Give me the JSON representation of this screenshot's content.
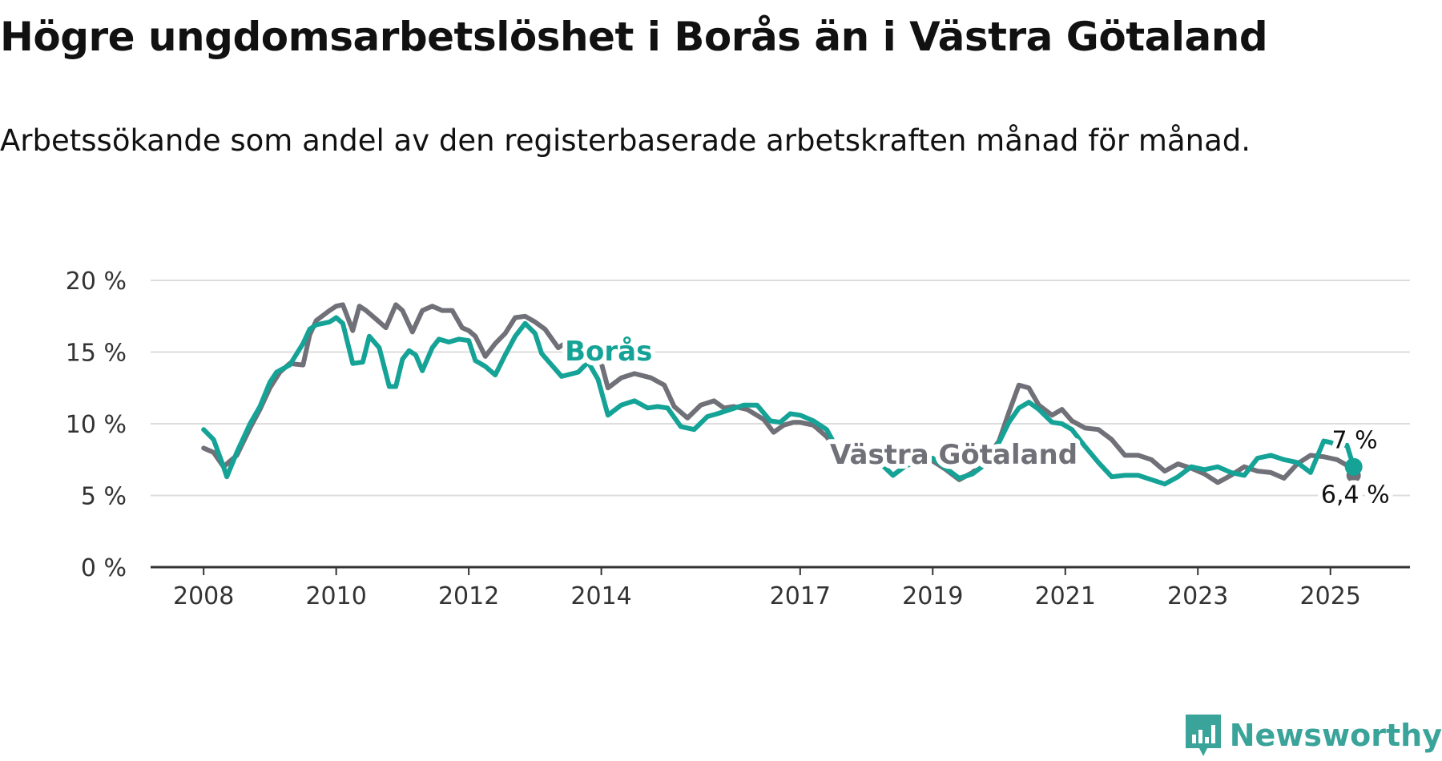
{
  "title": "Högre ungdomsarbetslöshet i Borås än i Västra Götaland",
  "subtitle": "Arbetssökande som andel av den registerbaserade arbetskraften månad för månad.",
  "brand": {
    "name": "Newsworthy",
    "icon": "bar-chart-speech-bubble-icon"
  },
  "colors": {
    "boras": "#14a396",
    "vastra": "#707078",
    "grid": "#dddddd",
    "axis": "#333333",
    "brand": "#3aa39a"
  },
  "chart_data": {
    "type": "line",
    "x_tick_labels": [
      "2008",
      "2010",
      "2012",
      "2014",
      "2017",
      "2019",
      "2021",
      "2023",
      "2025"
    ],
    "x_ticks": [
      2008,
      2010,
      2012,
      2014,
      2017,
      2019,
      2021,
      2023,
      2025
    ],
    "y_tick_labels": [
      "0 %",
      "5 %",
      "10 %",
      "15 %",
      "20 %"
    ],
    "y_ticks": [
      0,
      5,
      10,
      15,
      20
    ],
    "xlim": [
      2007.2,
      2026.2
    ],
    "ylim": [
      0,
      20
    ],
    "grid": true,
    "legend": "inline labels on lines",
    "series": [
      {
        "key": "boras",
        "name": "Borås",
        "end_label": "7 %",
        "x": [
          2008.0,
          2008.15,
          2008.3,
          2008.35,
          2008.5,
          2008.7,
          2008.85,
          2009.0,
          2009.1,
          2009.3,
          2009.5,
          2009.6,
          2009.7,
          2009.9,
          2010.0,
          2010.1,
          2010.25,
          2010.4,
          2010.5,
          2010.65,
          2010.8,
          2010.9,
          2011.0,
          2011.1,
          2011.2,
          2011.3,
          2011.45,
          2011.55,
          2011.7,
          2011.85,
          2012.0,
          2012.1,
          2012.25,
          2012.4,
          2012.55,
          2012.7,
          2012.85,
          2013.0,
          2013.1,
          2013.4,
          2013.65,
          2013.8,
          2013.95,
          2014.1,
          2014.3,
          2014.5,
          2014.7,
          2014.85,
          2015.0,
          2015.2,
          2015.4,
          2015.6,
          2015.75,
          2015.95,
          2016.15,
          2016.35,
          2016.55,
          2016.7,
          2016.85,
          2017.0,
          2017.2,
          2017.4,
          2017.6,
          2017.8,
          2018.0,
          2018.2,
          2018.4,
          2018.6,
          2018.8,
          2019.0,
          2019.2,
          2019.4,
          2019.6,
          2019.8,
          2020.0,
          2020.15,
          2020.3,
          2020.45,
          2020.6,
          2020.8,
          2020.95,
          2021.1,
          2021.3,
          2021.5,
          2021.7,
          2021.9,
          2022.1,
          2022.3,
          2022.5,
          2022.7,
          2022.9,
          2023.1,
          2023.3,
          2023.5,
          2023.7,
          2023.9,
          2024.1,
          2024.3,
          2024.5,
          2024.7,
          2024.9,
          2025.0,
          2025.1,
          2025.25,
          2025.35
        ],
        "y": [
          9.6,
          8.9,
          7.0,
          6.3,
          8.0,
          10.0,
          11.2,
          12.9,
          13.6,
          14.1,
          15.6,
          16.6,
          16.9,
          17.1,
          17.4,
          17.0,
          14.2,
          14.3,
          16.1,
          15.3,
          12.6,
          12.6,
          14.5,
          15.1,
          14.8,
          13.7,
          15.3,
          15.9,
          15.7,
          15.9,
          15.8,
          14.4,
          14.0,
          13.4,
          14.8,
          16.1,
          17.0,
          16.3,
          14.9,
          13.3,
          13.6,
          14.3,
          13.1,
          10.6,
          11.3,
          11.6,
          11.1,
          11.2,
          11.1,
          9.8,
          9.6,
          10.5,
          10.7,
          11.0,
          11.3,
          11.3,
          10.2,
          10.1,
          10.7,
          10.6,
          10.2,
          9.6,
          7.9,
          8.7,
          8.0,
          7.3,
          6.4,
          7.1,
          7.3,
          7.6,
          6.9,
          6.2,
          6.5,
          7.2,
          8.7,
          10.1,
          11.1,
          11.5,
          11.0,
          10.1,
          10.0,
          9.6,
          8.4,
          7.3,
          6.3,
          6.4,
          6.4,
          6.1,
          5.8,
          6.3,
          7.0,
          6.8,
          7.0,
          6.6,
          6.4,
          7.6,
          7.8,
          7.5,
          7.3,
          6.6,
          8.8,
          8.7,
          8.5,
          8.5,
          7.0
        ]
      },
      {
        "key": "vastra",
        "name": "Västra Götaland",
        "end_label": "6,4 %",
        "x": [
          2008.0,
          2008.15,
          2008.3,
          2008.5,
          2008.7,
          2008.85,
          2009.0,
          2009.15,
          2009.3,
          2009.5,
          2009.6,
          2009.7,
          2009.9,
          2010.0,
          2010.1,
          2010.25,
          2010.35,
          2010.45,
          2010.6,
          2010.75,
          2010.9,
          2011.0,
          2011.15,
          2011.3,
          2011.45,
          2011.6,
          2011.75,
          2011.9,
          2012.0,
          2012.1,
          2012.25,
          2012.4,
          2012.55,
          2012.7,
          2012.85,
          2013.0,
          2013.15,
          2013.35,
          2013.55,
          2013.7,
          2013.95,
          2014.1,
          2014.3,
          2014.5,
          2014.75,
          2014.95,
          2015.1,
          2015.3,
          2015.5,
          2015.7,
          2015.85,
          2016.0,
          2016.2,
          2016.45,
          2016.6,
          2016.75,
          2016.9,
          2017.0,
          2017.2,
          2017.4,
          2017.6,
          2017.8,
          2018.0,
          2018.2,
          2018.4,
          2018.6,
          2018.8,
          2019.0,
          2019.2,
          2019.4,
          2019.6,
          2019.8,
          2020.0,
          2020.15,
          2020.3,
          2020.45,
          2020.6,
          2020.8,
          2020.95,
          2021.1,
          2021.3,
          2021.5,
          2021.7,
          2021.9,
          2022.1,
          2022.3,
          2022.5,
          2022.7,
          2022.9,
          2023.1,
          2023.3,
          2023.5,
          2023.7,
          2023.9,
          2024.1,
          2024.3,
          2024.5,
          2024.7,
          2024.9,
          2025.0,
          2025.1,
          2025.25,
          2025.35
        ],
        "y": [
          8.3,
          8.0,
          7.0,
          7.8,
          9.7,
          11.0,
          12.5,
          13.6,
          14.2,
          14.1,
          16.2,
          17.2,
          17.9,
          18.2,
          18.3,
          16.5,
          18.2,
          17.9,
          17.3,
          16.7,
          18.3,
          17.9,
          16.4,
          17.9,
          18.2,
          17.9,
          17.9,
          16.7,
          16.5,
          16.1,
          14.7,
          15.6,
          16.3,
          17.4,
          17.5,
          17.1,
          16.6,
          15.3,
          15.9,
          15.3,
          15.1,
          12.5,
          13.2,
          13.5,
          13.2,
          12.7,
          11.2,
          10.4,
          11.3,
          11.6,
          11.1,
          11.2,
          11.0,
          10.3,
          9.4,
          9.9,
          10.1,
          10.1,
          9.9,
          9.1,
          7.8,
          8.7,
          8.0,
          7.3,
          6.4,
          7.1,
          7.3,
          7.4,
          6.8,
          6.1,
          6.6,
          7.5,
          8.8,
          10.8,
          12.7,
          12.5,
          11.3,
          10.6,
          11.0,
          10.2,
          9.7,
          9.6,
          8.9,
          7.8,
          7.8,
          7.5,
          6.7,
          7.2,
          6.9,
          6.5,
          5.9,
          6.4,
          7.0,
          6.7,
          6.6,
          6.2,
          7.2,
          7.8,
          7.7,
          7.6,
          7.5,
          7.1,
          6.4
        ]
      }
    ]
  }
}
